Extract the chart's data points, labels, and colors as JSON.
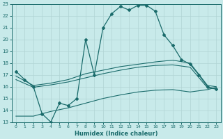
{
  "xlabel": "Humidex (Indice chaleur)",
  "xlim": [
    -0.5,
    23.5
  ],
  "ylim": [
    13,
    23
  ],
  "yticks": [
    13,
    14,
    15,
    16,
    17,
    18,
    19,
    20,
    21,
    22,
    23
  ],
  "xticks": [
    0,
    1,
    2,
    3,
    4,
    5,
    6,
    7,
    8,
    9,
    10,
    11,
    12,
    13,
    14,
    15,
    16,
    17,
    18,
    19,
    20,
    21,
    22,
    23
  ],
  "bg_color": "#c8eaea",
  "line_color": "#1a6b6b",
  "grid_color": "#b0d4d4",
  "line1_x": [
    0,
    1,
    2,
    3,
    4,
    5,
    6,
    7,
    8,
    9,
    10,
    11,
    12,
    13,
    14,
    15,
    16,
    17,
    18,
    19,
    20,
    21,
    22,
    23
  ],
  "line1_y": [
    17.3,
    16.6,
    16.0,
    13.7,
    13.0,
    14.6,
    14.4,
    15.0,
    20.0,
    17.0,
    21.0,
    22.2,
    22.8,
    22.5,
    22.9,
    22.9,
    22.4,
    20.4,
    19.5,
    18.3,
    17.9,
    17.0,
    16.0,
    15.8
  ],
  "line2_x": [
    0,
    2,
    4,
    6,
    8,
    10,
    12,
    14,
    16,
    18,
    20,
    22,
    23
  ],
  "line2_y": [
    16.9,
    16.1,
    16.3,
    16.6,
    17.1,
    17.4,
    17.7,
    17.9,
    18.1,
    18.25,
    18.0,
    16.1,
    16.0
  ],
  "line3_x": [
    0,
    2,
    4,
    6,
    8,
    10,
    12,
    14,
    16,
    18,
    20,
    22,
    23
  ],
  "line3_y": [
    16.6,
    15.95,
    16.15,
    16.4,
    16.75,
    17.1,
    17.4,
    17.65,
    17.8,
    17.85,
    17.65,
    15.9,
    15.8
  ],
  "line4_x": [
    0,
    2,
    4,
    6,
    8,
    10,
    12,
    14,
    16,
    18,
    20,
    22,
    23
  ],
  "line4_y": [
    13.5,
    13.5,
    13.9,
    14.2,
    14.6,
    15.0,
    15.3,
    15.55,
    15.7,
    15.75,
    15.55,
    15.75,
    15.95
  ]
}
